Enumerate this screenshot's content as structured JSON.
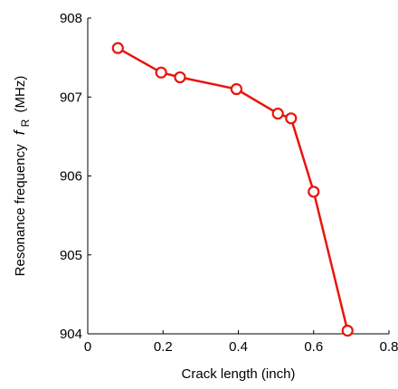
{
  "chart_data": {
    "type": "line",
    "xlabel": "Crack length (inch)",
    "ylabel": {
      "prefix": "Resonance frequency",
      "symbol": "f",
      "subscript": "R",
      "unit": "(MHz)"
    },
    "xlim": [
      0,
      0.8
    ],
    "ylim": [
      904,
      908
    ],
    "xticks": [
      {
        "value": 0,
        "label": "0"
      },
      {
        "value": 0.2,
        "label": "0.2"
      },
      {
        "value": 0.4,
        "label": "0.4"
      },
      {
        "value": 0.6,
        "label": "0.6"
      },
      {
        "value": 0.8,
        "label": "0.8"
      }
    ],
    "yticks": [
      {
        "value": 904,
        "label": "904"
      },
      {
        "value": 905,
        "label": "905"
      },
      {
        "value": 906,
        "label": "906"
      },
      {
        "value": 907,
        "label": "907"
      },
      {
        "value": 908,
        "label": "908"
      }
    ],
    "grid": false,
    "box": "left-bottom",
    "series": [
      {
        "color": "#e8140c",
        "marker": "circle",
        "x": [
          0.08,
          0.195,
          0.245,
          0.395,
          0.505,
          0.54,
          0.6,
          0.69
        ],
        "y": [
          907.62,
          907.31,
          907.25,
          907.1,
          906.79,
          906.73,
          905.8,
          904.04
        ]
      }
    ]
  }
}
